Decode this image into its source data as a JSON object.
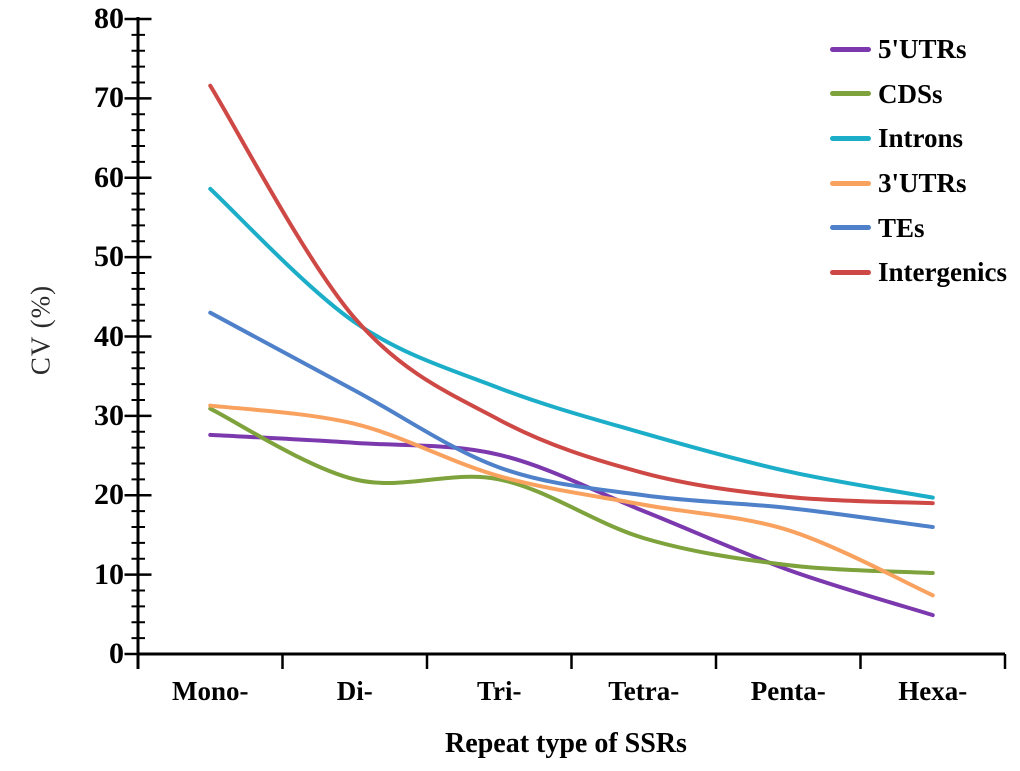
{
  "figure": {
    "background": "#ffffff",
    "axis_color": "#000000",
    "text_color": "#000000"
  },
  "chart_data": {
    "type": "line",
    "smooth": true,
    "markers": false,
    "grid": false,
    "legend_position": "top-right",
    "xlabel": "Repeat type of SSRs",
    "ylabel": "CV (%)",
    "ylim": [
      0,
      80
    ],
    "ytick_step": 10,
    "yminor_step": 2,
    "yticks": [
      0,
      10,
      20,
      30,
      40,
      50,
      60,
      70,
      80
    ],
    "categories": [
      "Mono-",
      "Di-",
      "Tri-",
      "Tetra-",
      "Penta-",
      "Hexa-"
    ],
    "series": [
      {
        "name": "5'UTRs",
        "color": "#7C39AE",
        "values": [
          27.6,
          26.6,
          25.1,
          18.0,
          10.6,
          4.9
        ]
      },
      {
        "name": "CDSs",
        "color": "#7EA23C",
        "values": [
          30.9,
          22.0,
          22.0,
          14.6,
          11.2,
          10.2
        ]
      },
      {
        "name": "Introns",
        "color": "#1CAEC8",
        "values": [
          58.6,
          41.8,
          33.5,
          27.8,
          23.0,
          19.7
        ]
      },
      {
        "name": "3'UTRs",
        "color": "#F9A25F",
        "values": [
          31.3,
          29.0,
          22.4,
          18.8,
          15.6,
          7.4
        ]
      },
      {
        "name": "TEs",
        "color": "#4E81C9",
        "values": [
          43.0,
          33.2,
          23.5,
          20.0,
          18.4,
          16.0
        ]
      },
      {
        "name": "Intergenics",
        "color": "#CE4945",
        "values": [
          71.6,
          42.3,
          29.5,
          22.8,
          19.8,
          19.0
        ]
      }
    ]
  }
}
